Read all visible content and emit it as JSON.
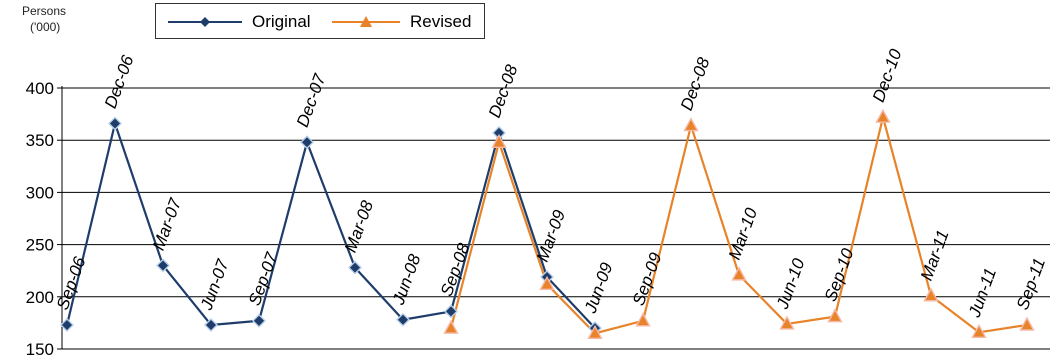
{
  "chart_data": {
    "type": "line",
    "ylabel_lines": [
      "Persons",
      "('000)"
    ],
    "ylim": [
      150,
      400
    ],
    "yticks": [
      150,
      200,
      250,
      300,
      350,
      400
    ],
    "grid": true,
    "legend_position": "top-left",
    "x": [
      "Sep-06",
      "Dec-06",
      "Mar-07",
      "Jun-07",
      "Sep-07",
      "Dec-07",
      "Mar-08",
      "Jun-08",
      "Sep-08",
      "Dec-08",
      "Mar-09",
      "Jun-09",
      "Sep-09",
      "Dec-08",
      "Mar-10",
      "Jun-10",
      "Sep-10",
      "Dec-10",
      "Mar-11",
      "Jun-11",
      "Sep-11"
    ],
    "series": [
      {
        "name": "Original",
        "color": "#1f3d6b",
        "marker": "diamond",
        "values": [
          173,
          366,
          230,
          173,
          177,
          348,
          228,
          178,
          186,
          357,
          219,
          170,
          null,
          null,
          null,
          null,
          null,
          null,
          null,
          null,
          null
        ]
      },
      {
        "name": "Revised",
        "color": "#e8832a",
        "marker": "triangle",
        "values": [
          null,
          null,
          null,
          null,
          null,
          null,
          null,
          null,
          170,
          348,
          212,
          165,
          177,
          364,
          221,
          174,
          181,
          372,
          201,
          166,
          173
        ]
      }
    ]
  }
}
